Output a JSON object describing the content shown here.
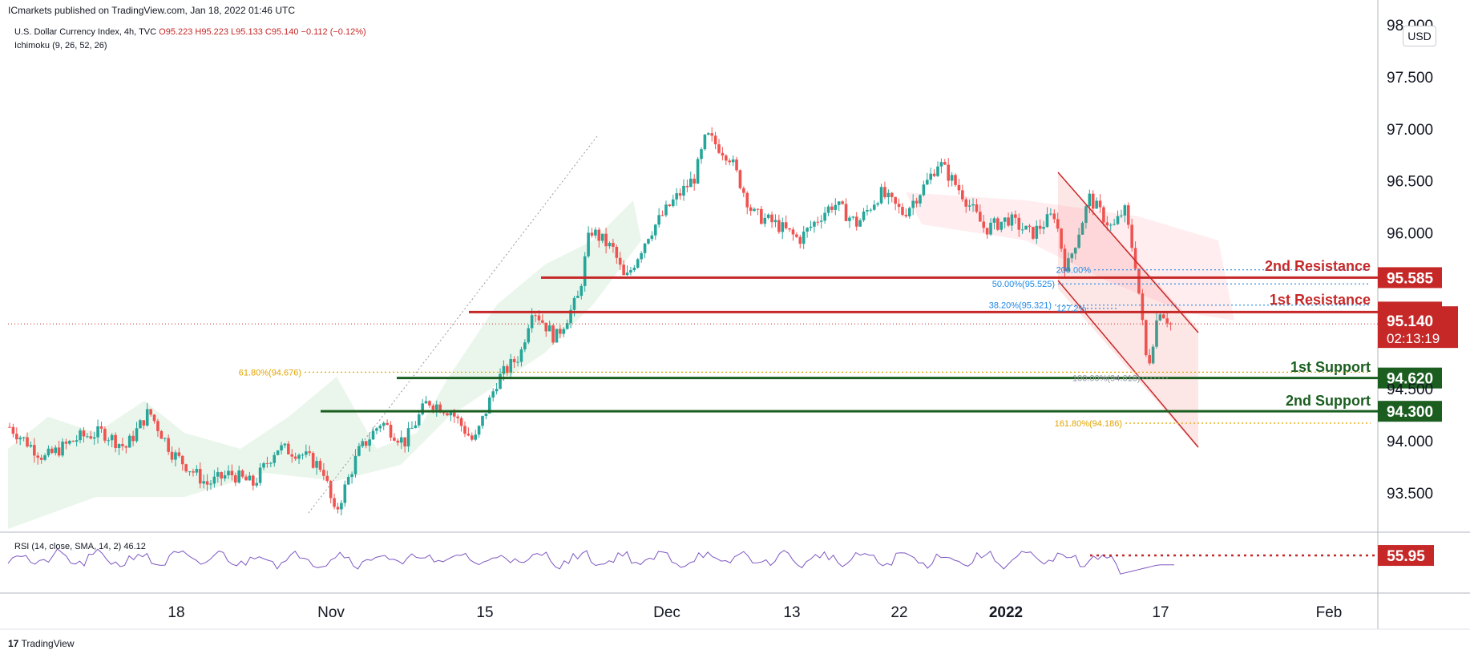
{
  "header": {
    "publisher_note": "ICmarkets published on TradingView.com, Jan 18, 2022 01:46 UTC",
    "symbol": "U.S. Dollar Currency Index, 4h, TVC",
    "ohlc": "O95.223 H95.223 L95.133 C95.140 −0.112 (−0.12%)",
    "indicator": "Ichimoku (9, 26, 52, 26)",
    "currency": "USD"
  },
  "rsi": {
    "legend": "RSI (14, close, SMA, 14, 2)",
    "value": "46.12",
    "level_label": "55.95"
  },
  "footer": {
    "brand": "TradingView",
    "brand_mark": "17"
  },
  "colors": {
    "up": "#26a69a",
    "down": "#ef5350",
    "resistance": "#c62828",
    "support": "#1b5e20",
    "fib_orange": "#e2a400",
    "fib_blue": "#1e88e5",
    "channel": "#ef5350",
    "cloud_green": "#e8f5e9",
    "cloud_red": "#ffebee"
  },
  "chart_data": {
    "type": "candlestick",
    "y_axis": {
      "ticks": [
        "98.000",
        "97.500",
        "97.000",
        "96.500",
        "96.000",
        "94.500",
        "94.000",
        "93.500"
      ],
      "range": [
        93.1,
        98.0
      ]
    },
    "x_axis": {
      "ticks": [
        "18",
        "Nov",
        "15",
        "Dec",
        "13",
        "22",
        "2022",
        "17",
        "Feb"
      ],
      "bold_tick": "2022"
    },
    "price_path": [
      [
        0,
        94.15
      ],
      [
        0.03,
        93.85
      ],
      [
        0.06,
        94.05
      ],
      [
        0.08,
        94.1
      ],
      [
        0.1,
        93.95
      ],
      [
        0.12,
        94.3
      ],
      [
        0.14,
        93.9
      ],
      [
        0.15,
        93.8
      ],
      [
        0.17,
        93.6
      ],
      [
        0.19,
        93.7
      ],
      [
        0.21,
        93.6
      ],
      [
        0.23,
        93.95
      ],
      [
        0.25,
        93.9
      ],
      [
        0.27,
        93.75
      ],
      [
        0.28,
        93.3
      ],
      [
        0.3,
        93.9
      ],
      [
        0.32,
        94.2
      ],
      [
        0.34,
        94.0
      ],
      [
        0.36,
        94.4
      ],
      [
        0.38,
        94.3
      ],
      [
        0.4,
        94.0
      ],
      [
        0.42,
        94.6
      ],
      [
        0.44,
        94.85
      ],
      [
        0.45,
        95.3
      ],
      [
        0.47,
        95.0
      ],
      [
        0.49,
        95.4
      ],
      [
        0.5,
        96.05
      ],
      [
        0.52,
        95.85
      ],
      [
        0.53,
        95.55
      ],
      [
        0.55,
        96.0
      ],
      [
        0.57,
        96.3
      ],
      [
        0.59,
        96.55
      ],
      [
        0.6,
        96.95
      ],
      [
        0.62,
        96.75
      ],
      [
        0.64,
        96.2
      ],
      [
        0.66,
        96.1
      ],
      [
        0.68,
        95.95
      ],
      [
        0.7,
        96.2
      ],
      [
        0.71,
        96.3
      ],
      [
        0.73,
        96.1
      ],
      [
        0.75,
        96.4
      ],
      [
        0.77,
        96.2
      ],
      [
        0.79,
        96.5
      ],
      [
        0.8,
        96.7
      ],
      [
        0.82,
        96.4
      ],
      [
        0.84,
        96.05
      ],
      [
        0.86,
        96.15
      ],
      [
        0.88,
        96.0
      ],
      [
        0.9,
        96.2
      ],
      [
        0.91,
        95.65
      ],
      [
        0.93,
        96.35
      ],
      [
        0.95,
        96.05
      ],
      [
        0.96,
        96.25
      ],
      [
        0.97,
        95.7
      ],
      [
        0.98,
        94.7
      ],
      [
        0.99,
        95.3
      ],
      [
        1.0,
        95.14
      ]
    ],
    "levels": [
      {
        "name": "2nd Resistance",
        "value": 95.585,
        "label": "95.585",
        "type": "resistance"
      },
      {
        "name": "1st Resistance",
        "value": 95.254,
        "label": "95.254",
        "type": "resistance"
      },
      {
        "name": "1st Support",
        "value": 94.62,
        "label": "94.620",
        "type": "support"
      },
      {
        "name": "2nd Support",
        "value": 94.3,
        "label": "94.300",
        "type": "support"
      }
    ],
    "current_price": {
      "value": 95.14,
      "label": "95.140",
      "countdown": "02:13:19"
    },
    "fibonacci": [
      {
        "label": "61.80%(94.676)",
        "value": 94.676
      },
      {
        "label": "50.00%(95.525)",
        "value": 95.525
      },
      {
        "label": "38.20%(95.321)",
        "value": 95.321
      },
      {
        "label": "161.80%(94.186)",
        "value": 94.186
      },
      {
        "label": "200.00%",
        "value": 95.66
      },
      {
        "label": "127.2%",
        "value": 95.29
      },
      {
        "label": "100.00%(94.618)",
        "value": 94.62
      }
    ]
  }
}
